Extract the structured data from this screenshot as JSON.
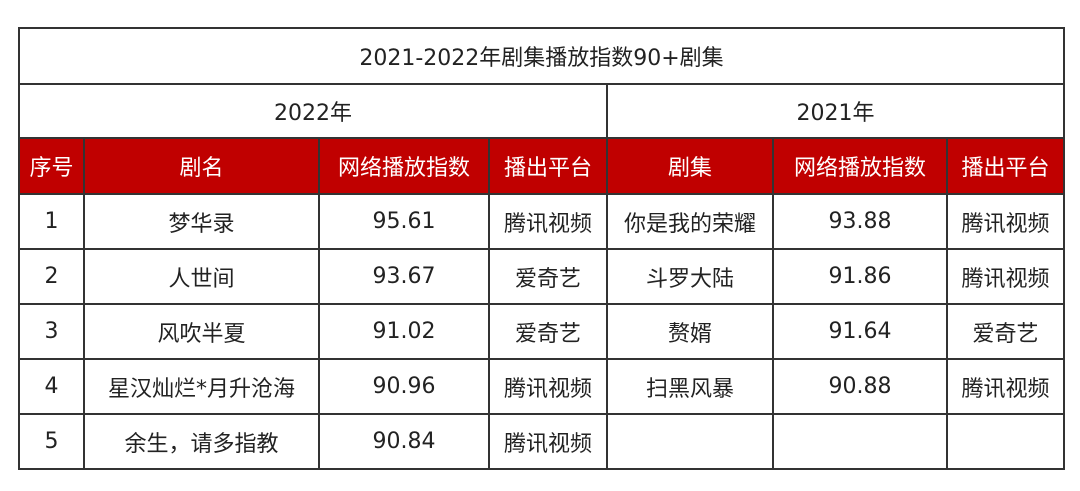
{
  "title": "2021-2022年剧集播放指数90+剧集",
  "years": {
    "left": "2022年",
    "right": "2021年"
  },
  "header_color": "#c00000",
  "headers": [
    "序号",
    "剧名",
    "网络播放指数",
    "播出平台",
    "剧集",
    "网络播放指数",
    "播出平台"
  ],
  "rows": [
    [
      "1",
      "梦华录",
      "95.61",
      "腾讯视频",
      "你是我的荣耀",
      "93.88",
      "腾讯视频"
    ],
    [
      "2",
      "人世间",
      "93.67",
      "爱奇艺",
      "斗罗大陆",
      "91.86",
      "腾讯视频"
    ],
    [
      "3",
      "风吹半夏",
      "91.02",
      "爱奇艺",
      "赘婿",
      "91.64",
      "爱奇艺"
    ],
    [
      "4",
      "星汉灿烂*月升沧海",
      "90.96",
      "腾讯视频",
      "扫黑风暴",
      "90.88",
      "腾讯视频"
    ],
    [
      "5",
      "余生，请多指教",
      "90.84",
      "腾讯视频",
      "",
      "",
      ""
    ]
  ]
}
